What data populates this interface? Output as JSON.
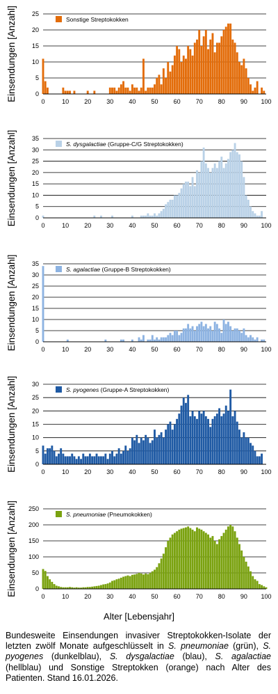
{
  "x_axis_title": "Alter [Lebensjahr]",
  "caption_parts": [
    {
      "t": "Bundesweite Einsendungen invasiver Streptokokken-Isolate der letzten zwölf Monate aufgeschlüsselt in ",
      "i": false
    },
    {
      "t": "S. pneumoniae",
      "i": true
    },
    {
      "t": " (grün), ",
      "i": false
    },
    {
      "t": "S. pyogenes",
      "i": true
    },
    {
      "t": " (dunkelblau), ",
      "i": false
    },
    {
      "t": "S. dysgalactiae",
      "i": true
    },
    {
      "t": " (blau), ",
      "i": false
    },
    {
      "t": "S. agalactiae",
      "i": true
    },
    {
      "t": " (hellblau) und Sonstige Streptokken (orange) nach Alter des Patienten. Stand 16.01.2026.",
      "i": false
    }
  ],
  "chart_data": [
    {
      "type": "bar",
      "ylabel": "Einsendungen [Anzahl]",
      "legend": {
        "italic": "",
        "text": "Sonstige Streptokokken"
      },
      "color": "#e36c09",
      "xlim": [
        0,
        100
      ],
      "xticks": [
        0,
        10,
        20,
        30,
        40,
        50,
        60,
        70,
        80,
        90,
        100
      ],
      "ylim": [
        0,
        25
      ],
      "yticks": [
        0,
        5,
        10,
        15,
        20,
        25
      ],
      "x": [
        0,
        1,
        2,
        3,
        4,
        5,
        6,
        7,
        8,
        9,
        10,
        11,
        12,
        13,
        14,
        15,
        16,
        17,
        18,
        19,
        20,
        21,
        22,
        23,
        24,
        25,
        26,
        27,
        28,
        29,
        30,
        31,
        32,
        33,
        34,
        35,
        36,
        37,
        38,
        39,
        40,
        41,
        42,
        43,
        44,
        45,
        46,
        47,
        48,
        49,
        50,
        51,
        52,
        53,
        54,
        55,
        56,
        57,
        58,
        59,
        60,
        61,
        62,
        63,
        64,
        65,
        66,
        67,
        68,
        69,
        70,
        71,
        72,
        73,
        74,
        75,
        76,
        77,
        78,
        79,
        80,
        81,
        82,
        83,
        84,
        85,
        86,
        87,
        88,
        89,
        90,
        91,
        92,
        93,
        94,
        95,
        96,
        97,
        98,
        99,
        100
      ],
      "values": [
        11,
        4,
        2,
        0,
        0,
        0,
        0,
        0,
        0,
        2,
        1,
        1,
        1,
        0,
        1,
        0,
        0,
        0,
        0,
        0,
        1,
        0,
        0,
        1,
        0,
        0,
        0,
        0,
        0,
        0,
        2,
        2,
        2,
        1,
        2,
        3,
        4,
        2,
        2,
        1,
        3,
        2,
        2,
        1,
        2,
        11,
        1,
        2,
        2,
        2,
        3,
        5,
        6,
        3,
        8,
        5,
        10,
        7,
        9,
        12,
        15,
        14,
        10,
        12,
        11,
        15,
        14,
        12,
        16,
        17,
        20,
        15,
        18,
        20,
        14,
        17,
        19,
        13,
        16,
        16,
        18,
        20,
        21,
        22,
        22,
        17,
        16,
        13,
        10,
        9,
        11,
        8,
        5,
        3,
        1,
        2,
        4,
        0,
        2,
        1,
        0
      ]
    },
    {
      "type": "bar",
      "ylabel": "Einsendungen [Anzahl]",
      "legend": {
        "italic": "S. dysgalactiae",
        "text": " (Gruppe-C/G Streptokokken)"
      },
      "color": "#b9d1e7",
      "xlim": [
        0,
        100
      ],
      "xticks": [
        0,
        10,
        20,
        30,
        40,
        50,
        60,
        70,
        80,
        90,
        100
      ],
      "ylim": [
        0,
        35
      ],
      "yticks": [
        0,
        5,
        10,
        15,
        20,
        25,
        30,
        35
      ],
      "x": [
        0,
        1,
        2,
        3,
        4,
        5,
        6,
        7,
        8,
        9,
        10,
        11,
        12,
        13,
        14,
        15,
        16,
        17,
        18,
        19,
        20,
        21,
        22,
        23,
        24,
        25,
        26,
        27,
        28,
        29,
        30,
        31,
        32,
        33,
        34,
        35,
        36,
        37,
        38,
        39,
        40,
        41,
        42,
        43,
        44,
        45,
        46,
        47,
        48,
        49,
        50,
        51,
        52,
        53,
        54,
        55,
        56,
        57,
        58,
        59,
        60,
        61,
        62,
        63,
        64,
        65,
        66,
        67,
        68,
        69,
        70,
        71,
        72,
        73,
        74,
        75,
        76,
        77,
        78,
        79,
        80,
        81,
        82,
        83,
        84,
        85,
        86,
        87,
        88,
        89,
        90,
        91,
        92,
        93,
        94,
        95,
        96,
        97,
        98,
        99,
        100
      ],
      "values": [
        1,
        0,
        0,
        0,
        0,
        0,
        0,
        0,
        0,
        0,
        0,
        0,
        0,
        0,
        0,
        0,
        0,
        0,
        0,
        0,
        0,
        0,
        0,
        1,
        0,
        0,
        1,
        0,
        0,
        0,
        0,
        1,
        0,
        0,
        0,
        0,
        0,
        0,
        0,
        0,
        1,
        0,
        0,
        0,
        1,
        1,
        1,
        2,
        1,
        1,
        2,
        1,
        2,
        3,
        4,
        6,
        7,
        8,
        8,
        10,
        10,
        11,
        13,
        15,
        16,
        16,
        14,
        18,
        14,
        21,
        20,
        25,
        31,
        24,
        22,
        20,
        22,
        24,
        22,
        25,
        27,
        22,
        24,
        26,
        29,
        30,
        33,
        29,
        28,
        25,
        18,
        10,
        8,
        5,
        3,
        2,
        1,
        1,
        3,
        0,
        0
      ]
    },
    {
      "type": "bar",
      "ylabel": "Einsendungen [Anzahl]",
      "legend": {
        "italic": "S. agalactiae",
        "text": " (Gruppe-B Streptokokken)"
      },
      "color": "#8db3e2",
      "xlim": [
        0,
        100
      ],
      "xticks": [
        0,
        10,
        20,
        30,
        40,
        50,
        60,
        70,
        80,
        90,
        100
      ],
      "ylim": [
        0,
        35
      ],
      "yticks": [
        0,
        5,
        10,
        15,
        20,
        25,
        30,
        35
      ],
      "x": [
        0,
        1,
        2,
        3,
        4,
        5,
        6,
        7,
        8,
        9,
        10,
        11,
        12,
        13,
        14,
        15,
        16,
        17,
        18,
        19,
        20,
        21,
        22,
        23,
        24,
        25,
        26,
        27,
        28,
        29,
        30,
        31,
        32,
        33,
        34,
        35,
        36,
        37,
        38,
        39,
        40,
        41,
        42,
        43,
        44,
        45,
        46,
        47,
        48,
        49,
        50,
        51,
        52,
        53,
        54,
        55,
        56,
        57,
        58,
        59,
        60,
        61,
        62,
        63,
        64,
        65,
        66,
        67,
        68,
        69,
        70,
        71,
        72,
        73,
        74,
        75,
        76,
        77,
        78,
        79,
        80,
        81,
        82,
        83,
        84,
        85,
        86,
        87,
        88,
        89,
        90,
        91,
        92,
        93,
        94,
        95,
        96,
        97,
        98,
        99,
        100
      ],
      "values": [
        34,
        0,
        0,
        0,
        0,
        0,
        0,
        0,
        0,
        0,
        0,
        1,
        0,
        0,
        0,
        0,
        0,
        0,
        0,
        0,
        0,
        0,
        0,
        0,
        0,
        0,
        0,
        0,
        1,
        0,
        0,
        0,
        0,
        0,
        0,
        1,
        1,
        0,
        0,
        0,
        1,
        0,
        0,
        2,
        1,
        3,
        0,
        1,
        1,
        3,
        1,
        2,
        1,
        2,
        2,
        2,
        3,
        4,
        3,
        5,
        5,
        3,
        4,
        6,
        6,
        8,
        6,
        7,
        5,
        7,
        8,
        9,
        7,
        8,
        6,
        7,
        5,
        9,
        8,
        6,
        4,
        10,
        8,
        9,
        7,
        5,
        6,
        6,
        5,
        4,
        6,
        3,
        2,
        3,
        2,
        1,
        2,
        0,
        1,
        1,
        0
      ]
    },
    {
      "type": "bar",
      "ylabel": "Einsendungen [Anzahl]",
      "legend": {
        "italic": "S. pyogenes",
        "text": " (Gruppe-A Streptokokken)"
      },
      "color": "#1f5aa4",
      "xlim": [
        0,
        100
      ],
      "xticks": [
        0,
        10,
        20,
        30,
        40,
        50,
        60,
        70,
        80,
        90,
        100
      ],
      "ylim": [
        0,
        30
      ],
      "yticks": [
        0,
        5,
        10,
        15,
        20,
        25,
        30
      ],
      "x": [
        0,
        1,
        2,
        3,
        4,
        5,
        6,
        7,
        8,
        9,
        10,
        11,
        12,
        13,
        14,
        15,
        16,
        17,
        18,
        19,
        20,
        21,
        22,
        23,
        24,
        25,
        26,
        27,
        28,
        29,
        30,
        31,
        32,
        33,
        34,
        35,
        36,
        37,
        38,
        39,
        40,
        41,
        42,
        43,
        44,
        45,
        46,
        47,
        48,
        49,
        50,
        51,
        52,
        53,
        54,
        55,
        56,
        57,
        58,
        59,
        60,
        61,
        62,
        63,
        64,
        65,
        66,
        67,
        68,
        69,
        70,
        71,
        72,
        73,
        74,
        75,
        76,
        77,
        78,
        79,
        80,
        81,
        82,
        83,
        84,
        85,
        86,
        87,
        88,
        89,
        90,
        91,
        92,
        93,
        94,
        95,
        96,
        97,
        98,
        99,
        100
      ],
      "values": [
        7,
        4,
        6,
        6,
        7,
        5,
        3,
        4,
        6,
        4,
        3,
        3,
        3,
        4,
        3,
        2,
        3,
        2,
        4,
        3,
        3,
        4,
        3,
        3,
        4,
        3,
        3,
        3,
        4,
        2,
        4,
        5,
        3,
        4,
        6,
        4,
        5,
        7,
        5,
        6,
        10,
        9,
        11,
        8,
        10,
        9,
        11,
        10,
        8,
        9,
        13,
        10,
        11,
        12,
        10,
        13,
        15,
        16,
        13,
        15,
        17,
        19,
        22,
        25,
        23,
        26,
        18,
        20,
        18,
        17,
        20,
        19,
        20,
        18,
        17,
        14,
        17,
        18,
        19,
        21,
        18,
        19,
        22,
        20,
        28,
        18,
        20,
        16,
        13,
        10,
        12,
        10,
        10,
        8,
        7,
        5,
        3,
        3,
        4,
        0,
        0
      ]
    },
    {
      "type": "bar",
      "ylabel": "Einsendungen [Anzahl]",
      "legend": {
        "italic": "S. pneumoniae",
        "text": " (Pneumokokken)"
      },
      "color": "#7aa20f",
      "xlim": [
        0,
        100
      ],
      "xticks": [
        0,
        10,
        20,
        30,
        40,
        50,
        60,
        70,
        80,
        90,
        100
      ],
      "ylim": [
        0,
        250
      ],
      "yticks": [
        0,
        50,
        100,
        150,
        200,
        250
      ],
      "x": [
        0,
        1,
        2,
        3,
        4,
        5,
        6,
        7,
        8,
        9,
        10,
        11,
        12,
        13,
        14,
        15,
        16,
        17,
        18,
        19,
        20,
        21,
        22,
        23,
        24,
        25,
        26,
        27,
        28,
        29,
        30,
        31,
        32,
        33,
        34,
        35,
        36,
        37,
        38,
        39,
        40,
        41,
        42,
        43,
        44,
        45,
        46,
        47,
        48,
        49,
        50,
        51,
        52,
        53,
        54,
        55,
        56,
        57,
        58,
        59,
        60,
        61,
        62,
        63,
        64,
        65,
        66,
        67,
        68,
        69,
        70,
        71,
        72,
        73,
        74,
        75,
        76,
        77,
        78,
        79,
        80,
        81,
        82,
        83,
        84,
        85,
        86,
        87,
        88,
        89,
        90,
        91,
        92,
        93,
        94,
        95,
        96,
        97,
        98,
        99,
        100
      ],
      "values": [
        62,
        56,
        40,
        30,
        22,
        15,
        10,
        8,
        6,
        5,
        5,
        5,
        6,
        5,
        4,
        5,
        4,
        4,
        5,
        5,
        6,
        6,
        7,
        8,
        9,
        10,
        12,
        14,
        15,
        17,
        20,
        25,
        27,
        30,
        32,
        35,
        38,
        40,
        42,
        40,
        44,
        45,
        47,
        50,
        48,
        45,
        48,
        46,
        50,
        55,
        60,
        68,
        80,
        95,
        110,
        130,
        150,
        160,
        170,
        175,
        180,
        185,
        188,
        190,
        192,
        195,
        190,
        185,
        180,
        192,
        188,
        185,
        180,
        175,
        170,
        160,
        165,
        150,
        140,
        155,
        165,
        175,
        185,
        195,
        200,
        195,
        180,
        160,
        140,
        120,
        100,
        85,
        70,
        55,
        40,
        30,
        25,
        15,
        12,
        8,
        5
      ]
    }
  ]
}
